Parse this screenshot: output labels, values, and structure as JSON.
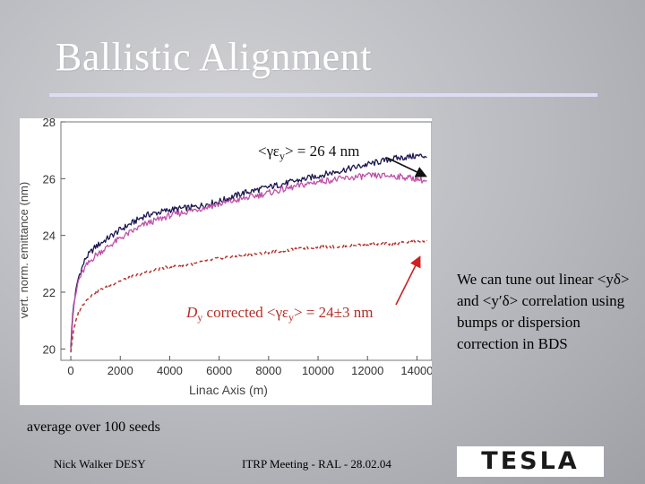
{
  "slide": {
    "title": "Ballistic Alignment",
    "note": "We can tune out linear <yδ> and <y′δ> correlation using bumps or dispersion correction in BDS",
    "seeds_caption": "average over 100 seeds",
    "footer_left": "Nick Walker DESY",
    "footer_center": "ITRP Meeting - RAL - 28.02.04",
    "logo_text": "TESLA"
  },
  "colors": {
    "title": "#ffffff",
    "rule": "#dcdcf4",
    "navy_series": "#1c1650",
    "magenta_series": "#c04fa8",
    "red_series": "#b03028",
    "arrow": "#d02020"
  },
  "chart_data": {
    "type": "line",
    "xlabel": "Linac Axis (m)",
    "ylabel": "vert. norm. emittance (nm)",
    "xlim": [
      -400,
      14600
    ],
    "ylim": [
      19.6,
      28
    ],
    "xticks": [
      0,
      2000,
      4000,
      6000,
      8000,
      10000,
      12000,
      14000
    ],
    "yticks": [
      20,
      22,
      24,
      26,
      28
    ],
    "grid": false,
    "annotations": {
      "top_prefix": "<γε",
      "top_sub": "y",
      "top_suffix": "> = 26  4 nm",
      "bottom_lead": "D",
      "bottom_lead_sub": "y",
      "bottom_mid": " corrected  <γε",
      "bottom_sub": "y",
      "bottom_suffix": "> = 24±3 nm"
    },
    "series": [
      {
        "color": "#1c1650",
        "style": "solid",
        "x": [
          0,
          100,
          300,
          600,
          1000,
          2000,
          3000,
          4000,
          5000,
          6000,
          7000,
          8000,
          9000,
          10000,
          11000,
          12000,
          13000,
          14000,
          14400
        ],
        "y": [
          20.1,
          21.5,
          22.5,
          23.2,
          23.6,
          24.2,
          24.7,
          24.9,
          25.0,
          25.2,
          25.5,
          25.7,
          25.9,
          26.1,
          26.3,
          26.5,
          26.7,
          26.8,
          26.8
        ]
      },
      {
        "color": "#c04fa8",
        "style": "solid",
        "x": [
          0,
          100,
          300,
          600,
          1000,
          2000,
          3000,
          4000,
          5000,
          6000,
          7000,
          8000,
          9000,
          10000,
          11000,
          12000,
          13000,
          14000,
          14400
        ],
        "y": [
          20.0,
          21.4,
          22.4,
          22.9,
          23.3,
          23.9,
          24.4,
          24.7,
          24.9,
          25.1,
          25.3,
          25.5,
          25.7,
          25.9,
          26.0,
          26.1,
          26.1,
          26.0,
          25.9
        ]
      },
      {
        "color": "#b03028",
        "style": "dashed",
        "x": [
          0,
          100,
          300,
          600,
          1000,
          2000,
          3000,
          4000,
          5000,
          6000,
          7000,
          8000,
          9000,
          10000,
          11000,
          12000,
          13000,
          14000,
          14400
        ],
        "y": [
          19.9,
          20.6,
          21.3,
          21.7,
          22.0,
          22.4,
          22.7,
          22.9,
          23.0,
          23.2,
          23.3,
          23.4,
          23.5,
          23.6,
          23.6,
          23.7,
          23.7,
          23.8,
          23.8
        ]
      }
    ]
  }
}
